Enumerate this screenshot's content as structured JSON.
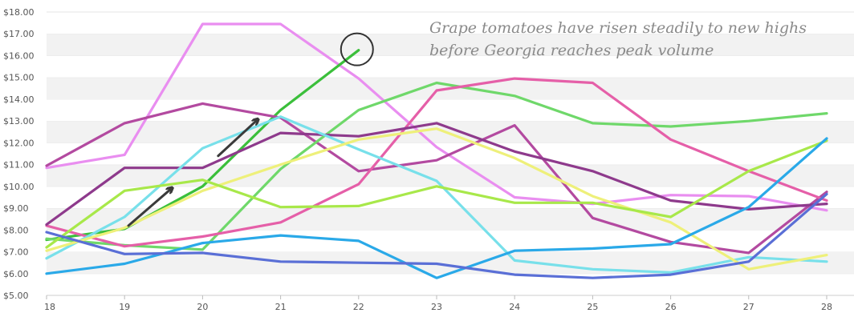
{
  "chart_data": {
    "type": "line",
    "title": "",
    "xlabel": "",
    "ylabel": "",
    "x": [
      18,
      19,
      20,
      21,
      22,
      23,
      24,
      25,
      26,
      27,
      28
    ],
    "xlim": [
      18,
      28.35
    ],
    "ylim": [
      5,
      18
    ],
    "y_ticks": [
      "$5.00",
      "$6.00",
      "$7.00",
      "$8.00",
      "$9.00",
      "$10.00",
      "$11.00",
      "$12.00",
      "$13.00",
      "$14.00",
      "$15.00",
      "$16.00",
      "$17.00",
      "$18.00"
    ],
    "grid": "alternating horizontal bands",
    "series": [
      {
        "color": "#e98ef0",
        "values": [
          10.85,
          11.45,
          17.45,
          17.45,
          14.95,
          11.8,
          9.5,
          9.2,
          9.6,
          9.55,
          8.9
        ]
      },
      {
        "color": "#3bbf3b",
        "values": [
          7.55,
          8.05,
          10.0,
          13.5,
          16.25,
          null,
          null,
          null,
          null,
          null,
          null
        ]
      },
      {
        "color": "#b34aa0",
        "values": [
          10.95,
          12.9,
          13.8,
          13.15,
          10.7,
          11.2,
          12.8,
          8.55,
          7.45,
          6.95,
          9.75
        ]
      },
      {
        "color": "#6fd86a",
        "values": [
          7.6,
          7.3,
          7.1,
          10.8,
          13.5,
          14.75,
          14.15,
          12.9,
          12.75,
          13.0,
          13.35
        ]
      },
      {
        "color": "#e55fa8",
        "values": [
          8.2,
          7.25,
          7.7,
          8.35,
          10.1,
          14.4,
          14.95,
          14.75,
          12.15,
          10.7,
          9.35
        ]
      },
      {
        "color": "#8e3a8c",
        "values": [
          8.25,
          10.85,
          10.85,
          12.45,
          12.3,
          12.9,
          11.6,
          10.7,
          9.35,
          8.95,
          9.2
        ]
      },
      {
        "color": "#78e0ea",
        "values": [
          6.7,
          8.6,
          11.75,
          13.2,
          11.7,
          10.25,
          6.6,
          6.2,
          6.05,
          6.75,
          6.55
        ]
      },
      {
        "color": "#eef07a",
        "values": [
          7.05,
          8.1,
          9.8,
          11.0,
          12.15,
          12.65,
          11.3,
          9.55,
          8.35,
          6.2,
          6.85
        ]
      },
      {
        "color": "#a8e84a",
        "values": [
          7.2,
          9.8,
          10.3,
          9.05,
          9.1,
          10.0,
          9.25,
          9.25,
          8.6,
          10.7,
          12.1
        ]
      },
      {
        "color": "#2aa9e8",
        "values": [
          6.0,
          6.45,
          7.4,
          7.75,
          7.5,
          5.8,
          7.05,
          7.15,
          7.35,
          9.05,
          12.2
        ]
      },
      {
        "color": "#5a6fd6",
        "values": [
          7.9,
          6.9,
          6.95,
          6.55,
          6.5,
          6.45,
          5.95,
          5.8,
          5.95,
          6.55,
          9.65
        ]
      }
    ],
    "annotation": {
      "lines": [
        "Grape tomatoes have risen steadily to new highs",
        "before Georgia reaches peak volume"
      ],
      "highlight_point": {
        "x": 22,
        "y": 16.25
      }
    },
    "arrows": [
      {
        "from": {
          "x": 19.05,
          "y": 8.2
        },
        "to": {
          "x": 19.6,
          "y": 9.9
        }
      },
      {
        "from": {
          "x": 20.2,
          "y": 11.4
        },
        "to": {
          "x": 20.7,
          "y": 13.05
        }
      }
    ]
  }
}
